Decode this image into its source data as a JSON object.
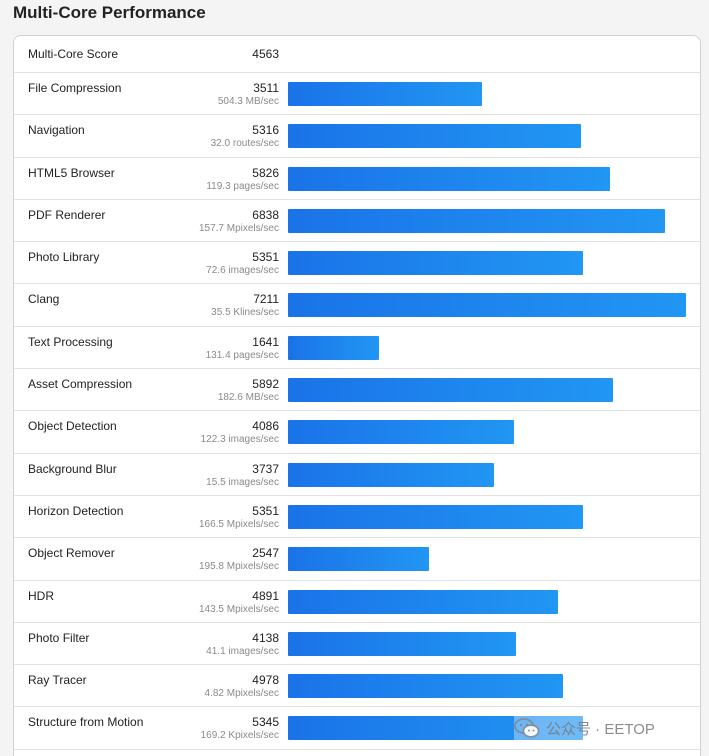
{
  "title": "Multi-Core Performance",
  "score": {
    "label": "Multi-Core Score",
    "value": "4563"
  },
  "max_score": 7211,
  "bar_color": "#1a73e8",
  "rows": [
    {
      "name": "File Compression",
      "score": "3511",
      "rate": "504.3 MB/sec",
      "value": 3511
    },
    {
      "name": "Navigation",
      "score": "5316",
      "rate": "32.0 routes/sec",
      "value": 5316
    },
    {
      "name": "HTML5 Browser",
      "score": "5826",
      "rate": "119.3 pages/sec",
      "value": 5826
    },
    {
      "name": "PDF Renderer",
      "score": "6838",
      "rate": "157.7 Mpixels/sec",
      "value": 6838
    },
    {
      "name": "Photo Library",
      "score": "5351",
      "rate": "72.6 images/sec",
      "value": 5351
    },
    {
      "name": "Clang",
      "score": "7211",
      "rate": "35.5 Klines/sec",
      "value": 7211
    },
    {
      "name": "Text Processing",
      "score": "1641",
      "rate": "131.4 pages/sec",
      "value": 1641
    },
    {
      "name": "Asset Compression",
      "score": "5892",
      "rate": "182.6 MB/sec",
      "value": 5892
    },
    {
      "name": "Object Detection",
      "score": "4086",
      "rate": "122.3 images/sec",
      "value": 4086
    },
    {
      "name": "Background Blur",
      "score": "3737",
      "rate": "15.5 images/sec",
      "value": 3737
    },
    {
      "name": "Horizon Detection",
      "score": "5351",
      "rate": "166.5 Mpixels/sec",
      "value": 5351
    },
    {
      "name": "Object Remover",
      "score": "2547",
      "rate": "195.8 Mpixels/sec",
      "value": 2547
    },
    {
      "name": "HDR",
      "score": "4891",
      "rate": "143.5 Mpixels/sec",
      "value": 4891
    },
    {
      "name": "Photo Filter",
      "score": "4138",
      "rate": "41.1 images/sec",
      "value": 4138
    },
    {
      "name": "Ray Tracer",
      "score": "4978",
      "rate": "4.82 Mpixels/sec",
      "value": 4978
    },
    {
      "name": "Structure from Motion",
      "score": "5345",
      "rate": "169.2 Kpixels/sec",
      "value": 5345
    }
  ],
  "watermark": {
    "text": "公众号 · EETOP",
    "icon": "wechat-icon"
  }
}
